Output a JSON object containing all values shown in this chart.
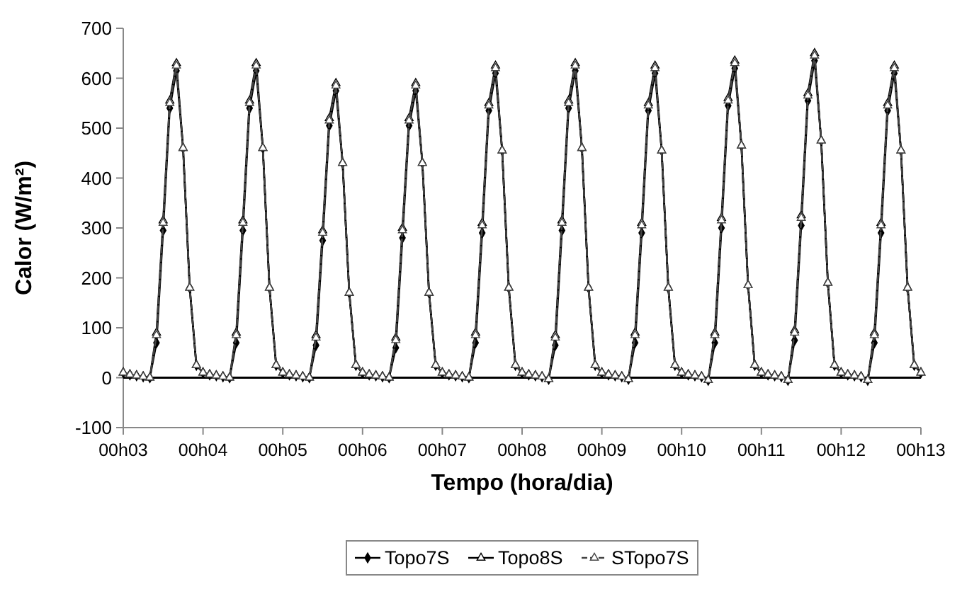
{
  "chart_data": {
    "type": "line",
    "xlabel": "Tempo (hora/dia)",
    "ylabel": "Calor (W/m²)",
    "ylim": [
      -100,
      700
    ],
    "yticks": [
      -100,
      0,
      100,
      200,
      300,
      400,
      500,
      600,
      700
    ],
    "grid": false,
    "legend": "bottom",
    "ref_lines": [
      {
        "axis": "y",
        "value": 0,
        "color": "#000000"
      }
    ],
    "categories": [
      "00h03",
      null,
      null,
      null,
      null,
      null,
      null,
      null,
      null,
      null,
      null,
      null,
      "00h04",
      null,
      null,
      null,
      null,
      null,
      null,
      null,
      null,
      null,
      null,
      null,
      "00h05",
      null,
      null,
      null,
      null,
      null,
      null,
      null,
      null,
      null,
      null,
      null,
      "00h06",
      null,
      null,
      null,
      null,
      null,
      null,
      null,
      null,
      null,
      null,
      null,
      "00h07",
      null,
      null,
      null,
      null,
      null,
      null,
      null,
      null,
      null,
      null,
      null,
      "00h08",
      null,
      null,
      null,
      null,
      null,
      null,
      null,
      null,
      null,
      null,
      null,
      "00h09",
      null,
      null,
      null,
      null,
      null,
      null,
      null,
      null,
      null,
      null,
      null,
      "00h10",
      null,
      null,
      null,
      null,
      null,
      null,
      null,
      null,
      null,
      null,
      null,
      "00h11",
      null,
      null,
      null,
      null,
      null,
      null,
      null,
      null,
      null,
      null,
      null,
      "00h12",
      null,
      null,
      null,
      null,
      null,
      null,
      null,
      null,
      null,
      null,
      null,
      "00h13"
    ],
    "series": [
      {
        "name": "Topo7S",
        "color": "#000000",
        "marker": "diamond",
        "line_style": "solid",
        "values": [
          10,
          6,
          4,
          2,
          0,
          70,
          295,
          540,
          615,
          460,
          180,
          25,
          10,
          6,
          4,
          2,
          0,
          70,
          295,
          540,
          615,
          460,
          180,
          25,
          10,
          6,
          4,
          2,
          0,
          65,
          275,
          505,
          575,
          430,
          170,
          25,
          10,
          6,
          4,
          2,
          0,
          60,
          280,
          505,
          575,
          430,
          170,
          25,
          10,
          6,
          4,
          2,
          0,
          70,
          290,
          535,
          610,
          455,
          180,
          25,
          10,
          6,
          4,
          2,
          -3,
          65,
          295,
          540,
          615,
          460,
          180,
          25,
          10,
          6,
          4,
          2,
          -3,
          70,
          290,
          535,
          610,
          455,
          180,
          25,
          10,
          6,
          4,
          2,
          -5,
          70,
          300,
          545,
          620,
          465,
          185,
          25,
          10,
          6,
          4,
          2,
          -5,
          75,
          305,
          555,
          635,
          475,
          190,
          25,
          10,
          6,
          4,
          2,
          -5,
          70,
          290,
          535,
          610,
          455,
          180,
          25,
          10
        ]
      },
      {
        "name": "Topo8S",
        "color": "#000000",
        "marker": "triangle",
        "line_style": "solid",
        "values": [
          10,
          6,
          4,
          2,
          0,
          90,
          315,
          555,
          630,
          460,
          180,
          25,
          10,
          6,
          4,
          2,
          0,
          90,
          315,
          555,
          630,
          460,
          180,
          25,
          10,
          6,
          4,
          2,
          0,
          85,
          295,
          520,
          590,
          430,
          170,
          25,
          10,
          6,
          4,
          2,
          0,
          80,
          300,
          520,
          590,
          430,
          170,
          25,
          10,
          6,
          4,
          2,
          0,
          90,
          310,
          550,
          625,
          455,
          180,
          25,
          10,
          6,
          4,
          2,
          -3,
          85,
          315,
          555,
          630,
          460,
          180,
          25,
          10,
          6,
          4,
          2,
          -3,
          90,
          310,
          550,
          625,
          455,
          180,
          25,
          10,
          6,
          4,
          2,
          -5,
          90,
          320,
          560,
          635,
          465,
          185,
          25,
          10,
          6,
          4,
          2,
          -5,
          95,
          325,
          570,
          650,
          475,
          190,
          25,
          10,
          6,
          4,
          2,
          -5,
          90,
          310,
          550,
          625,
          455,
          180,
          25,
          10
        ]
      },
      {
        "name": "STopo7S",
        "color": "#444444",
        "marker": "triangle",
        "line_style": "dashed",
        "values": [
          10,
          6,
          4,
          2,
          0,
          85,
          310,
          550,
          625,
          460,
          180,
          25,
          10,
          6,
          4,
          2,
          0,
          85,
          310,
          550,
          625,
          460,
          180,
          25,
          10,
          6,
          4,
          2,
          0,
          80,
          290,
          515,
          585,
          430,
          170,
          25,
          10,
          6,
          4,
          2,
          0,
          75,
          295,
          515,
          585,
          430,
          170,
          25,
          10,
          6,
          4,
          2,
          0,
          85,
          305,
          545,
          620,
          455,
          180,
          25,
          10,
          6,
          4,
          2,
          -3,
          80,
          310,
          550,
          625,
          460,
          180,
          25,
          10,
          6,
          4,
          2,
          -3,
          85,
          305,
          545,
          620,
          455,
          180,
          25,
          10,
          6,
          4,
          2,
          -5,
          85,
          315,
          555,
          630,
          465,
          185,
          25,
          10,
          6,
          4,
          2,
          -5,
          90,
          320,
          565,
          645,
          475,
          190,
          25,
          10,
          6,
          4,
          2,
          -5,
          85,
          305,
          545,
          620,
          455,
          180,
          25,
          10
        ]
      }
    ]
  }
}
